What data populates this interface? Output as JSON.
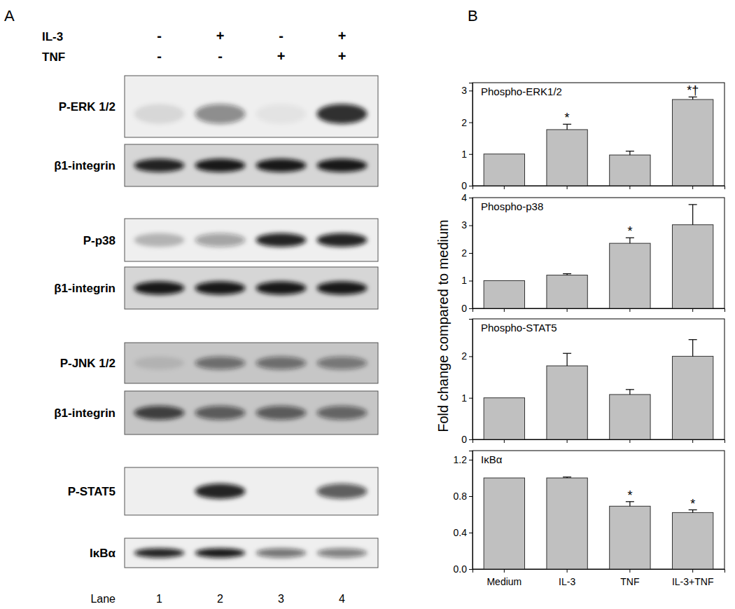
{
  "figure": {
    "panel_labels": [
      "A",
      "B"
    ],
    "y_label": "Fold change compared to medium"
  },
  "blots": {
    "treatments": [
      {
        "label": "IL-3",
        "signs": [
          "-",
          "+",
          "-",
          "+"
        ]
      },
      {
        "label": "TNF",
        "signs": [
          "-",
          "-",
          "+",
          "+"
        ]
      }
    ],
    "lane_label": "Lane",
    "lanes": [
      1,
      2,
      3,
      4
    ],
    "groups": [
      {
        "rows": [
          {
            "label": "P-ERK 1/2",
            "bands": [
              0.1,
              0.45,
              0.05,
              0.85
            ]
          },
          {
            "label": "β1-integrin",
            "bands": [
              0.9,
              0.95,
              0.95,
              0.95
            ]
          }
        ]
      },
      {
        "rows": [
          {
            "label": "P-p38",
            "bands": [
              0.25,
              0.35,
              0.9,
              0.9
            ]
          },
          {
            "label": "β1-integrin",
            "bands": [
              0.95,
              0.95,
              0.95,
              0.95
            ]
          }
        ]
      },
      {
        "rows": [
          {
            "label": "P-JNK 1/2",
            "bands": [
              0.1,
              0.5,
              0.5,
              0.45
            ]
          },
          {
            "label": "β1-integrin",
            "bands": [
              0.75,
              0.6,
              0.6,
              0.55
            ]
          }
        ]
      },
      {
        "rows": [
          {
            "label": "P-STAT5",
            "bands": [
              0.0,
              0.9,
              0.0,
              0.65
            ]
          }
        ]
      },
      {
        "rows": [
          {
            "label": "IκBα",
            "bands": [
              0.9,
              0.95,
              0.55,
              0.5
            ]
          }
        ]
      }
    ]
  },
  "chart_data": [
    {
      "type": "bar",
      "title": "Phospho-ERK1/2",
      "categories": [
        "Medium",
        "IL-3",
        "TNF",
        "IL-3+TNF"
      ],
      "values": [
        1,
        1.77,
        0.97,
        2.72
      ],
      "errors": [
        0,
        0.17,
        0.12,
        0.08
      ],
      "color": "#c0c0c0",
      "ylim": [
        0,
        3.25
      ],
      "yticks": [
        0,
        1,
        2,
        3
      ],
      "tick_labels": "y",
      "annotations": [
        {
          "x": "IL-3",
          "text": "*"
        },
        {
          "x": "IL-3+TNF",
          "text": "*†"
        }
      ]
    },
    {
      "type": "bar",
      "title": "Phospho-p38",
      "categories": [
        "Medium",
        "IL-3",
        "TNF",
        "IL-3+TNF"
      ],
      "values": [
        1,
        1.2,
        2.35,
        3.02
      ],
      "errors": [
        0,
        0.05,
        0.2,
        0.73
      ],
      "color": "#c0c0c0",
      "ylim": [
        0,
        4
      ],
      "yticks": [
        0,
        1,
        2,
        3,
        4
      ],
      "tick_labels": "y",
      "annotations": [
        {
          "x": "TNF",
          "text": "*"
        }
      ]
    },
    {
      "type": "bar",
      "title": "Phospho-STAT5",
      "categories": [
        "Medium",
        "IL-3",
        "TNF",
        "IL-3+TNF"
      ],
      "values": [
        1,
        1.77,
        1.08,
        2.0
      ],
      "errors": [
        0,
        0.3,
        0.12,
        0.4
      ],
      "color": "#c0c0c0",
      "ylim": [
        0,
        2.9
      ],
      "yticks": [
        0,
        1,
        2
      ],
      "tick_labels": "y"
    },
    {
      "type": "bar",
      "title": "IκBα",
      "categories": [
        "Medium",
        "IL-3",
        "TNF",
        "IL-3+TNF"
      ],
      "values": [
        1,
        1.0,
        0.69,
        0.62
      ],
      "errors": [
        0,
        0.01,
        0.05,
        0.03
      ],
      "color": "#c0c0c0",
      "ylim": [
        0,
        1.3
      ],
      "yticks": [
        {
          "value": 0,
          "label": "0.0"
        },
        0.4,
        0.8,
        1.2
      ],
      "annotations": [
        {
          "x": "TNF",
          "text": "*"
        },
        {
          "x": "IL-3+TNF",
          "text": "*"
        }
      ]
    }
  ]
}
